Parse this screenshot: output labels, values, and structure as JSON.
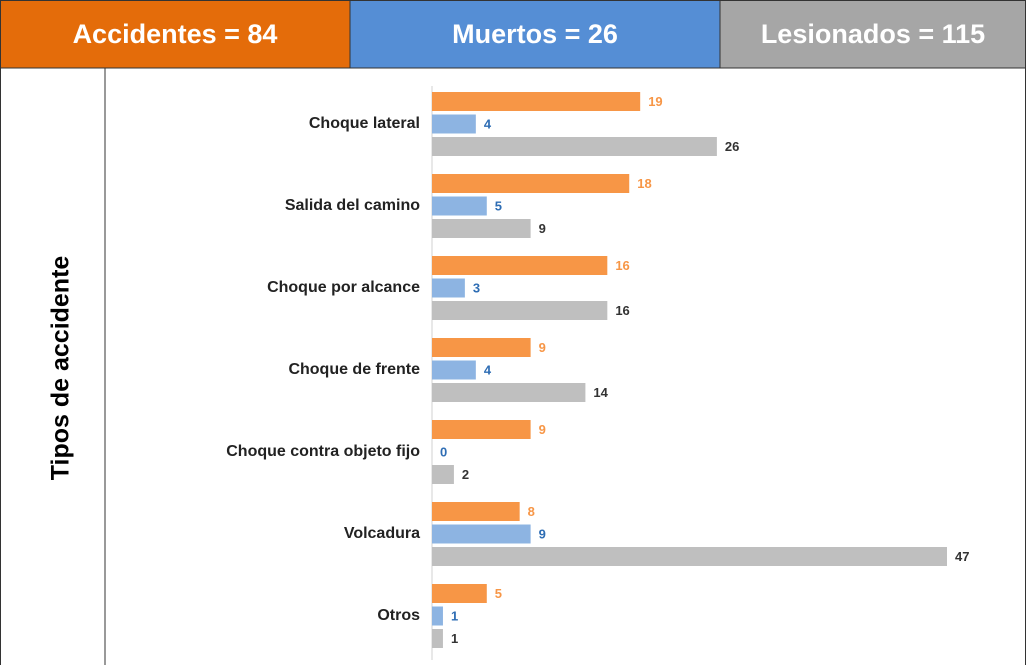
{
  "header": {
    "cells": [
      "Accidentes = 84",
      "Muertos = 26",
      "Lesionados = 115"
    ]
  },
  "side_label": "Tipos de accidente",
  "chart_data": {
    "type": "bar",
    "orientation": "horizontal",
    "categories": [
      "Choque lateral",
      "Salida del camino",
      "Choque por alcance",
      "Choque de frente",
      "Choque contra objeto fijo",
      "Volcadura",
      "Otros"
    ],
    "series": [
      {
        "color": "#F79646",
        "label_color": "#F79646",
        "values": [
          19,
          18,
          16,
          9,
          9,
          8,
          5
        ]
      },
      {
        "color": "#8DB4E2",
        "label_color": "#2E6DB4",
        "values": [
          4,
          5,
          3,
          4,
          0,
          9,
          1
        ]
      },
      {
        "color": "#BFBFBF",
        "label_color": "#333333",
        "values": [
          26,
          9,
          16,
          14,
          2,
          47,
          1
        ]
      }
    ]
  }
}
